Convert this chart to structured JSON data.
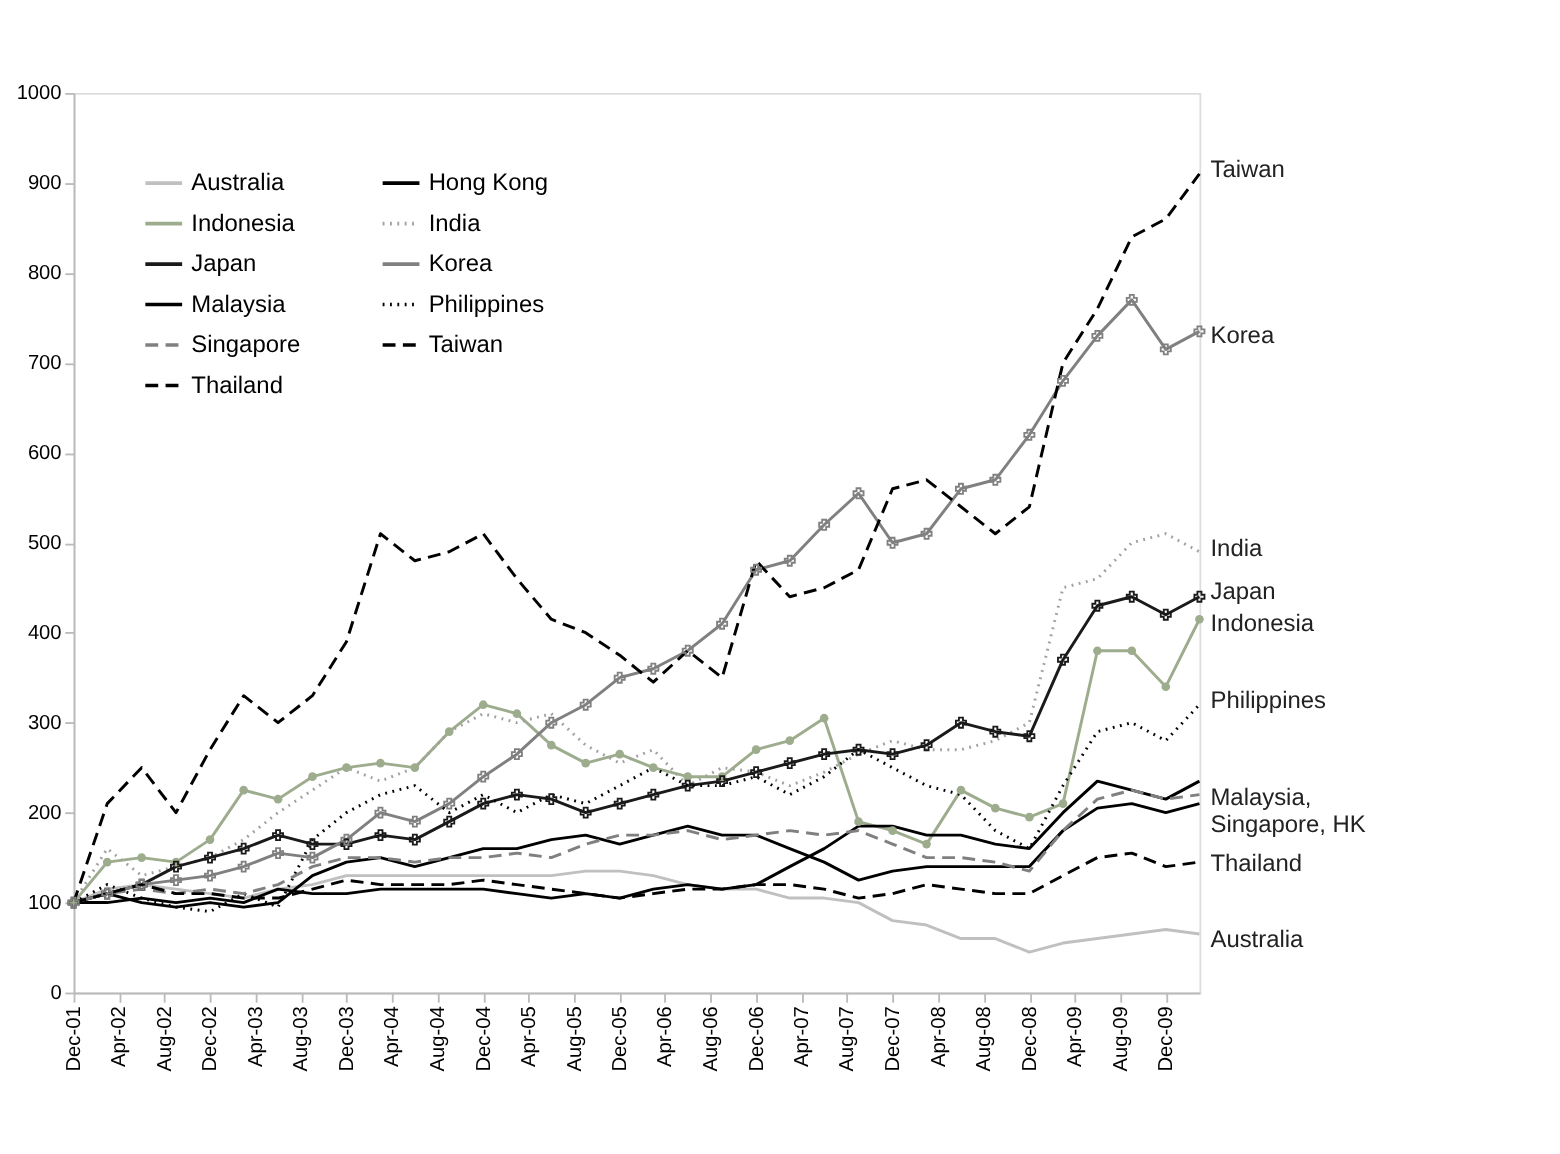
{
  "chart_data": {
    "type": "line",
    "x": [
      "2001-12",
      "2002-03",
      "2002-06",
      "2002-09",
      "2002-12",
      "2003-03",
      "2003-06",
      "2003-09",
      "2003-12",
      "2004-03",
      "2004-06",
      "2004-09",
      "2004-12",
      "2005-03",
      "2005-06",
      "2005-09",
      "2005-12",
      "2006-03",
      "2006-06",
      "2006-09",
      "2006-12",
      "2007-03",
      "2007-06",
      "2007-09",
      "2007-12",
      "2008-03",
      "2008-06",
      "2008-09",
      "2008-12",
      "2009-03",
      "2009-06",
      "2009-09",
      "2009-12",
      "2010-03"
    ],
    "xlim": [
      "2001-12",
      "2010-03"
    ],
    "xticks": [
      {
        "value": "2001-12",
        "label": "Dec-01"
      },
      {
        "value": "2002-04",
        "label": "Apr-02"
      },
      {
        "value": "2002-08",
        "label": "Aug-02"
      },
      {
        "value": "2002-12",
        "label": "Dec-02"
      },
      {
        "value": "2003-04",
        "label": "Apr-03"
      },
      {
        "value": "2003-08",
        "label": "Aug-03"
      },
      {
        "value": "2003-12",
        "label": "Dec-03"
      },
      {
        "value": "2004-04",
        "label": "Apr-04"
      },
      {
        "value": "2004-08",
        "label": "Aug-04"
      },
      {
        "value": "2004-12",
        "label": "Dec-04"
      },
      {
        "value": "2005-04",
        "label": "Apr-05"
      },
      {
        "value": "2005-08",
        "label": "Aug-05"
      },
      {
        "value": "2005-12",
        "label": "Dec-05"
      },
      {
        "value": "2006-04",
        "label": "Apr-06"
      },
      {
        "value": "2006-08",
        "label": "Aug-06"
      },
      {
        "value": "2006-12",
        "label": "Dec-06"
      },
      {
        "value": "2007-04",
        "label": "Apr-07"
      },
      {
        "value": "2007-08",
        "label": "Aug-07"
      },
      {
        "value": "2007-12",
        "label": "Dec-07"
      },
      {
        "value": "2008-04",
        "label": "Apr-08"
      },
      {
        "value": "2008-08",
        "label": "Aug-08"
      },
      {
        "value": "2008-12",
        "label": "Dec-08"
      },
      {
        "value": "2009-04",
        "label": "Apr-09"
      },
      {
        "value": "2009-08",
        "label": "Aug-09"
      },
      {
        "value": "2009-12",
        "label": "Dec-09"
      }
    ],
    "ylim": [
      0,
      1000
    ],
    "yticks": [
      0,
      100,
      200,
      300,
      400,
      500,
      600,
      700,
      800,
      900,
      1000
    ],
    "grid": false,
    "legend": "top left",
    "series": [
      {
        "name": "Australia",
        "color": "#c0c0c0",
        "line_style": "solid",
        "marker": "none",
        "values": [
          100,
          115,
          120,
          115,
          110,
          105,
          115,
          120,
          130,
          130,
          130,
          130,
          130,
          130,
          130,
          135,
          135,
          130,
          120,
          115,
          115,
          105,
          105,
          100,
          80,
          75,
          60,
          60,
          45,
          55,
          60,
          65,
          70,
          65
        ]
      },
      {
        "name": "Hong Kong",
        "color": "#000000",
        "line_style": "solid",
        "marker": "none",
        "values": [
          100,
          110,
          100,
          95,
          100,
          95,
          100,
          130,
          145,
          150,
          140,
          150,
          160,
          160,
          170,
          175,
          165,
          175,
          185,
          175,
          175,
          160,
          145,
          125,
          135,
          140,
          140,
          140,
          140,
          180,
          205,
          210,
          200,
          210
        ]
      },
      {
        "name": "Indonesia",
        "color": "#9eac8e",
        "line_style": "solid",
        "marker": "circle",
        "values": [
          100,
          145,
          150,
          145,
          170,
          225,
          215,
          240,
          250,
          255,
          250,
          290,
          320,
          310,
          275,
          255,
          265,
          250,
          240,
          240,
          270,
          280,
          305,
          190,
          180,
          165,
          225,
          205,
          195,
          210,
          380,
          380,
          340,
          415
        ]
      },
      {
        "name": "India",
        "color": "#a0a0a0",
        "line_style": "dotted",
        "marker": "none",
        "values": [
          100,
          160,
          130,
          140,
          150,
          170,
          200,
          225,
          250,
          235,
          250,
          290,
          310,
          300,
          310,
          275,
          255,
          270,
          230,
          250,
          245,
          230,
          245,
          265,
          280,
          270,
          270,
          280,
          300,
          450,
          460,
          500,
          510,
          490
        ]
      },
      {
        "name": "Japan",
        "color": "#1a1a1a",
        "line_style": "solid",
        "marker": "cross",
        "values": [
          100,
          110,
          120,
          140,
          150,
          160,
          175,
          165,
          165,
          175,
          170,
          190,
          210,
          220,
          215,
          200,
          210,
          220,
          230,
          235,
          245,
          255,
          265,
          270,
          265,
          275,
          300,
          290,
          285,
          370,
          430,
          440,
          420,
          440
        ]
      },
      {
        "name": "Korea",
        "color": "#808080",
        "line_style": "solid",
        "marker": "cross",
        "values": [
          100,
          110,
          120,
          125,
          130,
          140,
          155,
          150,
          170,
          200,
          190,
          210,
          240,
          265,
          300,
          320,
          350,
          360,
          380,
          410,
          470,
          480,
          520,
          555,
          500,
          510,
          560,
          570,
          620,
          680,
          730,
          770,
          715,
          735
        ]
      },
      {
        "name": "Malaysia",
        "color": "#000000",
        "line_style": "solid",
        "marker": "none",
        "values": [
          100,
          100,
          105,
          100,
          105,
          100,
          115,
          110,
          110,
          115,
          115,
          115,
          115,
          110,
          105,
          110,
          105,
          115,
          120,
          115,
          120,
          140,
          160,
          185,
          185,
          175,
          175,
          165,
          160,
          200,
          235,
          225,
          215,
          235
        ]
      },
      {
        "name": "Philippines",
        "color": "#000000",
        "line_style": "dotted",
        "marker": "none",
        "values": [
          100,
          120,
          105,
          95,
          90,
          110,
          95,
          170,
          200,
          220,
          230,
          200,
          220,
          200,
          220,
          210,
          230,
          250,
          230,
          230,
          240,
          220,
          240,
          270,
          250,
          230,
          220,
          180,
          160,
          230,
          290,
          300,
          280,
          320
        ]
      },
      {
        "name": "Singapore",
        "color": "#808080",
        "line_style": "dashed",
        "marker": "none",
        "values": [
          100,
          110,
          115,
          110,
          115,
          110,
          120,
          140,
          150,
          150,
          145,
          150,
          150,
          155,
          150,
          165,
          175,
          175,
          180,
          170,
          175,
          180,
          175,
          180,
          165,
          150,
          150,
          145,
          135,
          180,
          215,
          225,
          215,
          220
        ]
      },
      {
        "name": "Taiwan",
        "color": "#000000",
        "line_style": "dashed",
        "marker": "none",
        "values": [
          100,
          210,
          250,
          200,
          270,
          330,
          300,
          330,
          390,
          510,
          480,
          490,
          510,
          460,
          415,
          400,
          375,
          345,
          380,
          350,
          480,
          440,
          450,
          470,
          560,
          570,
          540,
          510,
          540,
          700,
          760,
          840,
          860,
          910
        ]
      },
      {
        "name": "Thailand",
        "color": "#000000",
        "line_style": "dashed",
        "marker": "none",
        "values": [
          100,
          110,
          120,
          110,
          110,
          105,
          105,
          115,
          125,
          120,
          120,
          120,
          125,
          120,
          115,
          110,
          105,
          110,
          115,
          115,
          120,
          120,
          115,
          105,
          110,
          120,
          115,
          110,
          110,
          130,
          150,
          155,
          140,
          145
        ]
      }
    ],
    "annotations": [
      {
        "text": "Taiwan",
        "x": "2010-03",
        "y": 915
      },
      {
        "text": "Korea",
        "x": "2010-03",
        "y": 730
      },
      {
        "text": "India",
        "x": "2010-03",
        "y": 493
      },
      {
        "text": "Japan",
        "x": "2010-03",
        "y": 446
      },
      {
        "text": "Indonesia",
        "x": "2010-03",
        "y": 410
      },
      {
        "text": "Philippines",
        "x": "2010-03",
        "y": 325
      },
      {
        "text": "Malaysia,\nSingapore, HK",
        "x": "2010-03",
        "y": 217
      },
      {
        "text": "Thailand",
        "x": "2010-03",
        "y": 143
      },
      {
        "text": "Australia",
        "x": "2010-03",
        "y": 59
      }
    ]
  }
}
